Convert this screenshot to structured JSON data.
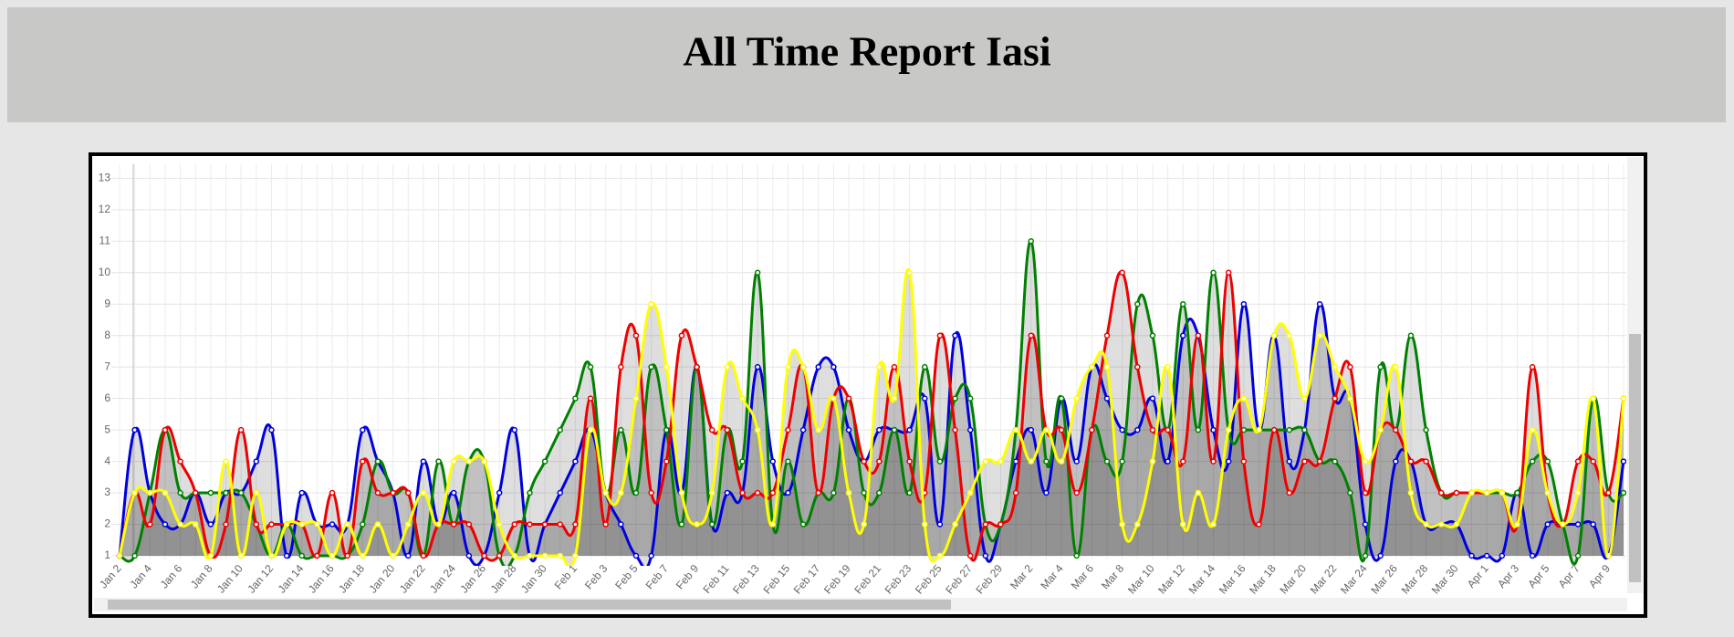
{
  "header": {
    "title": "All Time Report Iasi"
  },
  "chart_data": {
    "type": "line",
    "categories": [
      "Jan 2",
      null,
      "Jan 4",
      null,
      "Jan 6",
      null,
      "Jan 8",
      null,
      "Jan 10",
      null,
      "Jan 12",
      null,
      "Jan 14",
      null,
      "Jan 16",
      null,
      "Jan 18",
      null,
      "Jan 20",
      null,
      "Jan 22",
      null,
      "Jan 24",
      null,
      "Jan 26",
      null,
      "Jan 28",
      null,
      "Jan 30",
      null,
      "Feb 1",
      null,
      "Feb 3",
      null,
      "Feb 5",
      null,
      "Feb 7",
      null,
      "Feb 9",
      null,
      "Feb 11",
      null,
      "Feb 13",
      null,
      "Feb 15",
      null,
      "Feb 17",
      null,
      "Feb 19",
      null,
      "Feb 21",
      null,
      "Feb 23",
      null,
      "Feb 25",
      null,
      "Feb 27",
      null,
      "Feb 29",
      null,
      "Mar 2",
      null,
      "Mar 4",
      null,
      "Mar 6",
      null,
      "Mar 8",
      null,
      "Mar 10",
      null,
      "Mar 12",
      null,
      "Mar 14",
      null,
      "Mar 16",
      null,
      "Mar 18",
      null,
      "Mar 20",
      null,
      "Mar 22",
      null,
      "Mar 24",
      null,
      "Mar 26",
      null,
      "Mar 28",
      null,
      "Mar 30",
      null,
      "Apr 1",
      null,
      "Apr 3",
      null,
      "Apr 5",
      null,
      "Apr 7",
      null,
      "Apr 9",
      null
    ],
    "series": [
      {
        "color": "#0000dd",
        "values": [
          1,
          5,
          3,
          2,
          2,
          3,
          2,
          3,
          3,
          4,
          5,
          1,
          3,
          2,
          2,
          2,
          5,
          4,
          3,
          1,
          4,
          2,
          3,
          1,
          1,
          3,
          5,
          1,
          2,
          3,
          4,
          5,
          3,
          2,
          1,
          1,
          5,
          3,
          7,
          2,
          3,
          3,
          7,
          4,
          3,
          5,
          7,
          7,
          5,
          4,
          5,
          5,
          5,
          6,
          2,
          8,
          5,
          1,
          2,
          4,
          5,
          3,
          6,
          4,
          7,
          6,
          5,
          5,
          6,
          4,
          8,
          8,
          5,
          4,
          9,
          5,
          8,
          4,
          5,
          9,
          6,
          6,
          2,
          1,
          4,
          4,
          2,
          2,
          2,
          1,
          1,
          1,
          3,
          1,
          2,
          2,
          2,
          2,
          1,
          4
        ]
      },
      {
        "color": "#008000",
        "values": [
          1,
          1,
          3,
          5,
          3,
          3,
          3,
          3,
          3,
          2,
          1,
          2,
          1,
          1,
          1,
          1,
          2,
          4,
          3,
          3,
          1,
          4,
          2,
          4,
          4,
          1,
          1,
          3,
          4,
          5,
          6,
          7,
          3,
          5,
          3,
          7,
          5,
          2,
          7,
          2,
          5,
          4,
          10,
          2,
          4,
          2,
          3,
          3,
          6,
          3,
          3,
          5,
          3,
          7,
          4,
          6,
          6,
          2,
          2,
          5,
          11,
          4,
          6,
          1,
          5,
          4,
          4,
          9,
          8,
          5,
          9,
          5,
          10,
          5,
          5,
          5,
          5,
          5,
          5,
          4,
          4,
          3,
          1,
          7,
          5,
          8,
          5,
          3,
          3,
          3,
          3,
          3,
          3,
          4,
          4,
          2,
          1,
          6,
          3,
          3
        ]
      },
      {
        "color": "#ee0000",
        "values": [
          1,
          3,
          2,
          5,
          4,
          3,
          1,
          2,
          5,
          2,
          2,
          2,
          2,
          1,
          3,
          1,
          4,
          3,
          3,
          3,
          1,
          2,
          2,
          2,
          1,
          1,
          2,
          2,
          2,
          2,
          2,
          6,
          2,
          7,
          8,
          3,
          4,
          8,
          7,
          5,
          5,
          3,
          3,
          3,
          5,
          7,
          3,
          6,
          6,
          4,
          4,
          7,
          4,
          3,
          8,
          5,
          1,
          2,
          2,
          3,
          8,
          5,
          5,
          3,
          5,
          8,
          10,
          7,
          5,
          5,
          4,
          8,
          4,
          10,
          4,
          2,
          5,
          3,
          4,
          4,
          6,
          7,
          3,
          5,
          5,
          4,
          4,
          3,
          3,
          3,
          3,
          3,
          2,
          7,
          3,
          2,
          4,
          4,
          3,
          6
        ]
      },
      {
        "color": "#ffff00",
        "values": [
          1,
          3,
          3,
          3,
          2,
          2,
          1,
          4,
          1,
          3,
          1,
          2,
          2,
          2,
          1,
          2,
          1,
          2,
          1,
          2,
          3,
          2,
          4,
          4,
          4,
          2,
          1,
          1,
          1,
          1,
          1,
          5,
          3,
          3,
          6,
          9,
          7,
          3,
          2,
          3,
          7,
          6,
          5,
          2,
          7,
          7,
          5,
          6,
          3,
          2,
          7,
          6,
          10,
          2,
          1,
          2,
          3,
          4,
          4,
          5,
          4,
          5,
          4,
          6,
          7,
          7,
          2,
          2,
          4,
          7,
          2,
          3,
          2,
          5,
          6,
          5,
          8,
          8,
          6,
          8,
          7,
          6,
          4,
          5,
          7,
          3,
          2,
          2,
          2,
          3,
          3,
          3,
          2,
          5,
          3,
          2,
          3,
          6,
          1,
          6
        ]
      }
    ],
    "ylim": [
      1,
      13.3
    ],
    "yticks": [
      1,
      2,
      3,
      4,
      5,
      6,
      7,
      8,
      9,
      10,
      11,
      12,
      13
    ],
    "grid": true
  }
}
